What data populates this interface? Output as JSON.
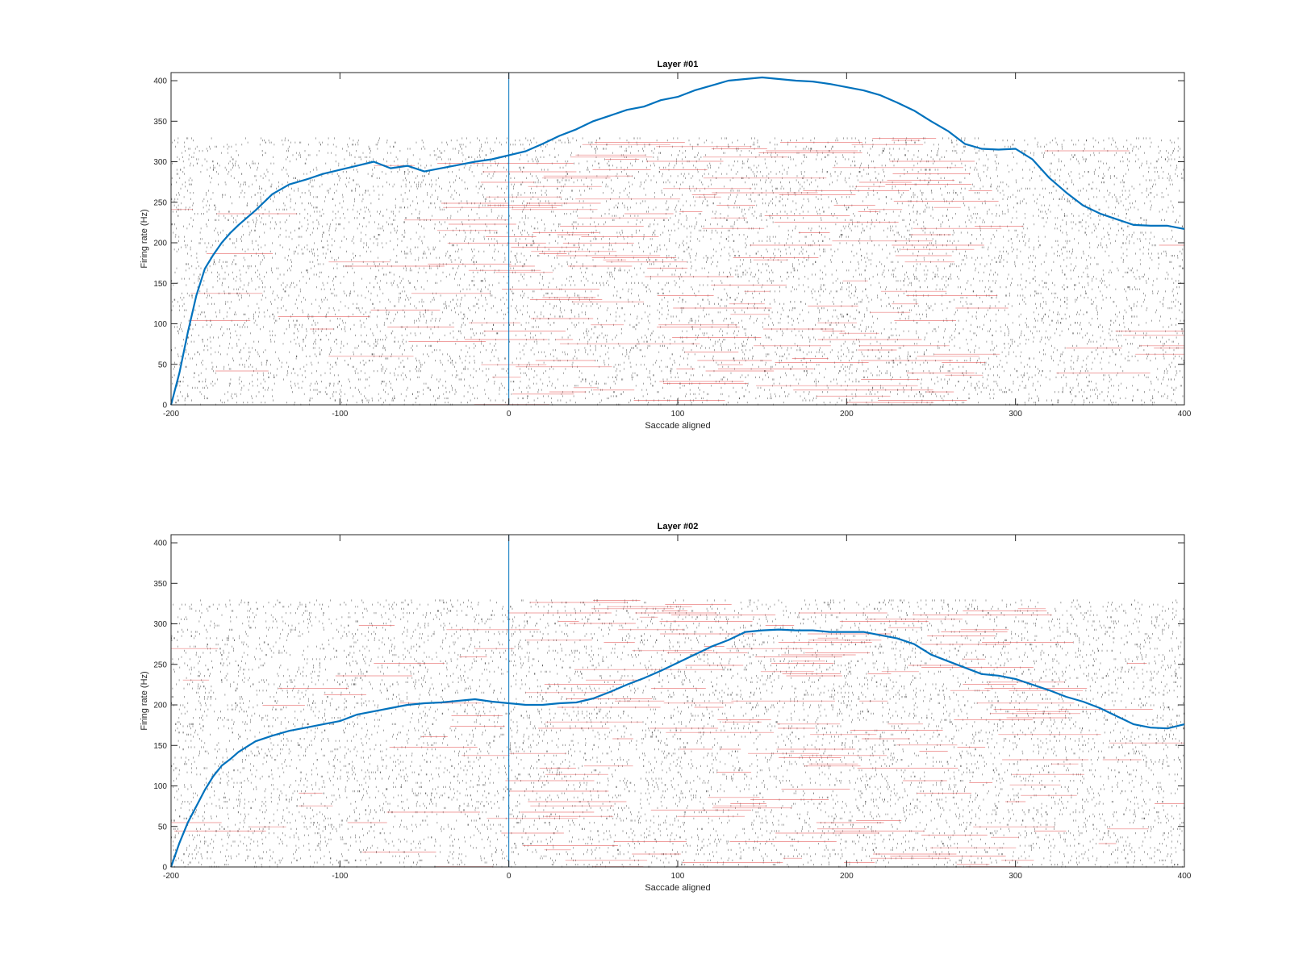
{
  "figure": {
    "background": "#ffffff",
    "raster_black_color": "#333333",
    "raster_red_color": "#e24a4a",
    "curve_color": "#0072BD",
    "marker_color": "#0072BD"
  },
  "chart_data": [
    {
      "type": "line",
      "title": "Layer #01",
      "xlabel": "Saccade aligned",
      "ylabel": "Firing rate (Hz)",
      "xlim": [
        -200,
        400
      ],
      "ylim": [
        0,
        410
      ],
      "xticks": [
        -200,
        -100,
        0,
        100,
        200,
        300,
        400
      ],
      "yticks": [
        0,
        50,
        100,
        150,
        200,
        250,
        300,
        350,
        400
      ],
      "grid": false,
      "vertical_marker_x": 0,
      "raster_trials_max": 330,
      "series": [
        {
          "x": [
            -200,
            -195,
            -190,
            -185,
            -180,
            -175,
            -170,
            -165,
            -160,
            -150,
            -140,
            -130,
            -120,
            -110,
            -100,
            -90,
            -80,
            -70,
            -60,
            -50,
            -40,
            -30,
            -20,
            -10,
            0,
            10,
            20,
            30,
            40,
            50,
            60,
            70,
            80,
            90,
            100,
            110,
            120,
            130,
            140,
            150,
            160,
            170,
            180,
            190,
            200,
            210,
            220,
            230,
            240,
            250,
            260,
            270,
            280,
            290,
            300,
            310,
            320,
            330,
            340,
            350,
            360,
            370,
            380,
            390,
            400
          ],
          "y": [
            0,
            40,
            90,
            135,
            168,
            185,
            200,
            212,
            222,
            240,
            260,
            272,
            278,
            285,
            290,
            295,
            300,
            292,
            295,
            288,
            292,
            296,
            300,
            303,
            308,
            313,
            322,
            332,
            340,
            350,
            357,
            364,
            368,
            376,
            380,
            388,
            394,
            400,
            402,
            404,
            402,
            400,
            399,
            396,
            392,
            388,
            382,
            373,
            363,
            350,
            338,
            322,
            316,
            315,
            316,
            303,
            280,
            262,
            246,
            236,
            229,
            222,
            221,
            221,
            217
          ]
        }
      ]
    },
    {
      "type": "line",
      "title": "Layer #02",
      "xlabel": "Saccade aligned",
      "ylabel": "Firing rate (Hz)",
      "xlim": [
        -200,
        400
      ],
      "ylim": [
        0,
        410
      ],
      "xticks": [
        -200,
        -100,
        0,
        100,
        200,
        300,
        400
      ],
      "yticks": [
        0,
        50,
        100,
        150,
        200,
        250,
        300,
        350,
        400
      ],
      "grid": false,
      "vertical_marker_x": 0,
      "raster_trials_max": 330,
      "series": [
        {
          "x": [
            -200,
            -195,
            -190,
            -185,
            -180,
            -175,
            -170,
            -165,
            -160,
            -150,
            -140,
            -130,
            -120,
            -110,
            -100,
            -90,
            -80,
            -70,
            -60,
            -50,
            -40,
            -30,
            -20,
            -10,
            0,
            10,
            20,
            30,
            40,
            50,
            60,
            70,
            80,
            90,
            100,
            110,
            120,
            130,
            140,
            150,
            160,
            170,
            180,
            190,
            200,
            210,
            220,
            230,
            240,
            250,
            260,
            270,
            280,
            290,
            300,
            310,
            320,
            330,
            340,
            350,
            360,
            370,
            380,
            390,
            400
          ],
          "y": [
            0,
            30,
            55,
            75,
            95,
            112,
            125,
            133,
            142,
            155,
            162,
            168,
            172,
            176,
            180,
            188,
            192,
            196,
            200,
            202,
            203,
            205,
            207,
            204,
            202,
            200,
            200,
            202,
            203,
            208,
            216,
            225,
            233,
            242,
            252,
            262,
            272,
            280,
            290,
            292,
            293,
            292,
            292,
            290,
            290,
            290,
            286,
            282,
            275,
            262,
            254,
            246,
            238,
            236,
            232,
            225,
            218,
            210,
            204,
            196,
            186,
            176,
            172,
            171,
            176
          ]
        }
      ]
    }
  ]
}
